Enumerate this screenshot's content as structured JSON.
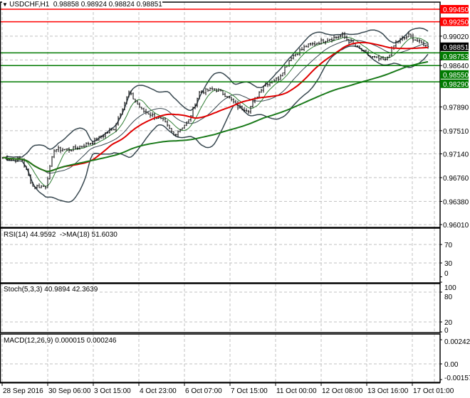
{
  "header": {
    "symbol": "USDCHF,H1",
    "ohlc": "0.98858 0.98924 0.98824 0.98851",
    "menu_icon": "triangle-down-icon"
  },
  "colors": {
    "resistance": "#ff0000",
    "support": "#007a00",
    "ma_fast": "#e00000",
    "ma_slow": "#1a7a1a",
    "bands": "#37474f",
    "rsi": "#ff0000",
    "rsi_ma": "#000080",
    "stoch_main": "#20b2aa",
    "stoch_signal": "#ff0000",
    "macd_hist": "#b0b0b0",
    "macd_signal": "#ff0000"
  },
  "chart_data": [
    {
      "type": "line",
      "title": "USDCHF,H1 price (OHLC bars with moving averages and Bollinger bands)",
      "ylim": [
        0.9601,
        0.9945
      ],
      "y_ticks": [
        "0.99020",
        "0.97890",
        "0.97510",
        "0.97140",
        "0.96760",
        "0.96380",
        "0.96010"
      ],
      "hidden_ticks": [
        "0.98640"
      ],
      "x_tick_labels": [
        "28 Sep 2016",
        "30 Sep 06:00",
        "3 Oct 15:00",
        "4 Oct 23:00",
        "6 Oct 07:00",
        "7 Oct 15:00",
        "11 Oct 00:00",
        "12 Oct 08:00",
        "13 Oct 16:00",
        "17 Oct 01:00"
      ],
      "bar_count": 200,
      "close_path": [
        [
          0,
          0.9708
        ],
        [
          9,
          0.9704
        ],
        [
          14,
          0.9662
        ],
        [
          20,
          0.9662
        ],
        [
          24,
          0.9721
        ],
        [
          32,
          0.9721
        ],
        [
          42,
          0.9733
        ],
        [
          52,
          0.9755
        ],
        [
          59,
          0.9812
        ],
        [
          65,
          0.9784
        ],
        [
          75,
          0.9767
        ],
        [
          80,
          0.9744
        ],
        [
          87,
          0.9767
        ],
        [
          92,
          0.9812
        ],
        [
          99,
          0.9818
        ],
        [
          105,
          0.9807
        ],
        [
          110,
          0.9789
        ],
        [
          115,
          0.9784
        ],
        [
          122,
          0.9824
        ],
        [
          129,
          0.9835
        ],
        [
          135,
          0.9869
        ],
        [
          142,
          0.9886
        ],
        [
          152,
          0.9897
        ],
        [
          159,
          0.9903
        ],
        [
          165,
          0.9886
        ],
        [
          172,
          0.9869
        ],
        [
          179,
          0.9863
        ],
        [
          184,
          0.9892
        ],
        [
          190,
          0.9903
        ],
        [
          195,
          0.9892
        ],
        [
          199,
          0.98851
        ]
      ],
      "levels": [
        {
          "value": 0.9945,
          "label": "0.99450",
          "kind": "resistance"
        },
        {
          "value": 0.9925,
          "label": "0.99250",
          "kind": "resistance"
        },
        {
          "value": 0.98753,
          "label": "0.98753",
          "kind": "support"
        },
        {
          "value": 0.9855,
          "label": "0.98550",
          "kind": "support"
        },
        {
          "value": 0.9829,
          "label": "0.98290",
          "kind": "support"
        }
      ],
      "current_price": {
        "value": 0.98851,
        "label": "0.98851"
      }
    },
    {
      "type": "line",
      "title": "RSI(14) 44.9592  ->MA(18) 51.6030",
      "ylim": [
        0,
        100
      ],
      "y_ticks": [
        "70",
        "30",
        "0"
      ]
    },
    {
      "type": "line",
      "title": "Stoch(5,3,3) 40.9894 42.3639",
      "ylim": [
        0,
        100
      ],
      "y_ticks": [
        "100",
        "80",
        "20",
        "0"
      ]
    },
    {
      "type": "bar",
      "title": "MACD(12,26,9) 0.000015 0.000246",
      "ylim": [
        -0.001576,
        0.002421
      ],
      "y_ticks": [
        "0.002421",
        "0.00",
        "-0.001576"
      ]
    }
  ]
}
